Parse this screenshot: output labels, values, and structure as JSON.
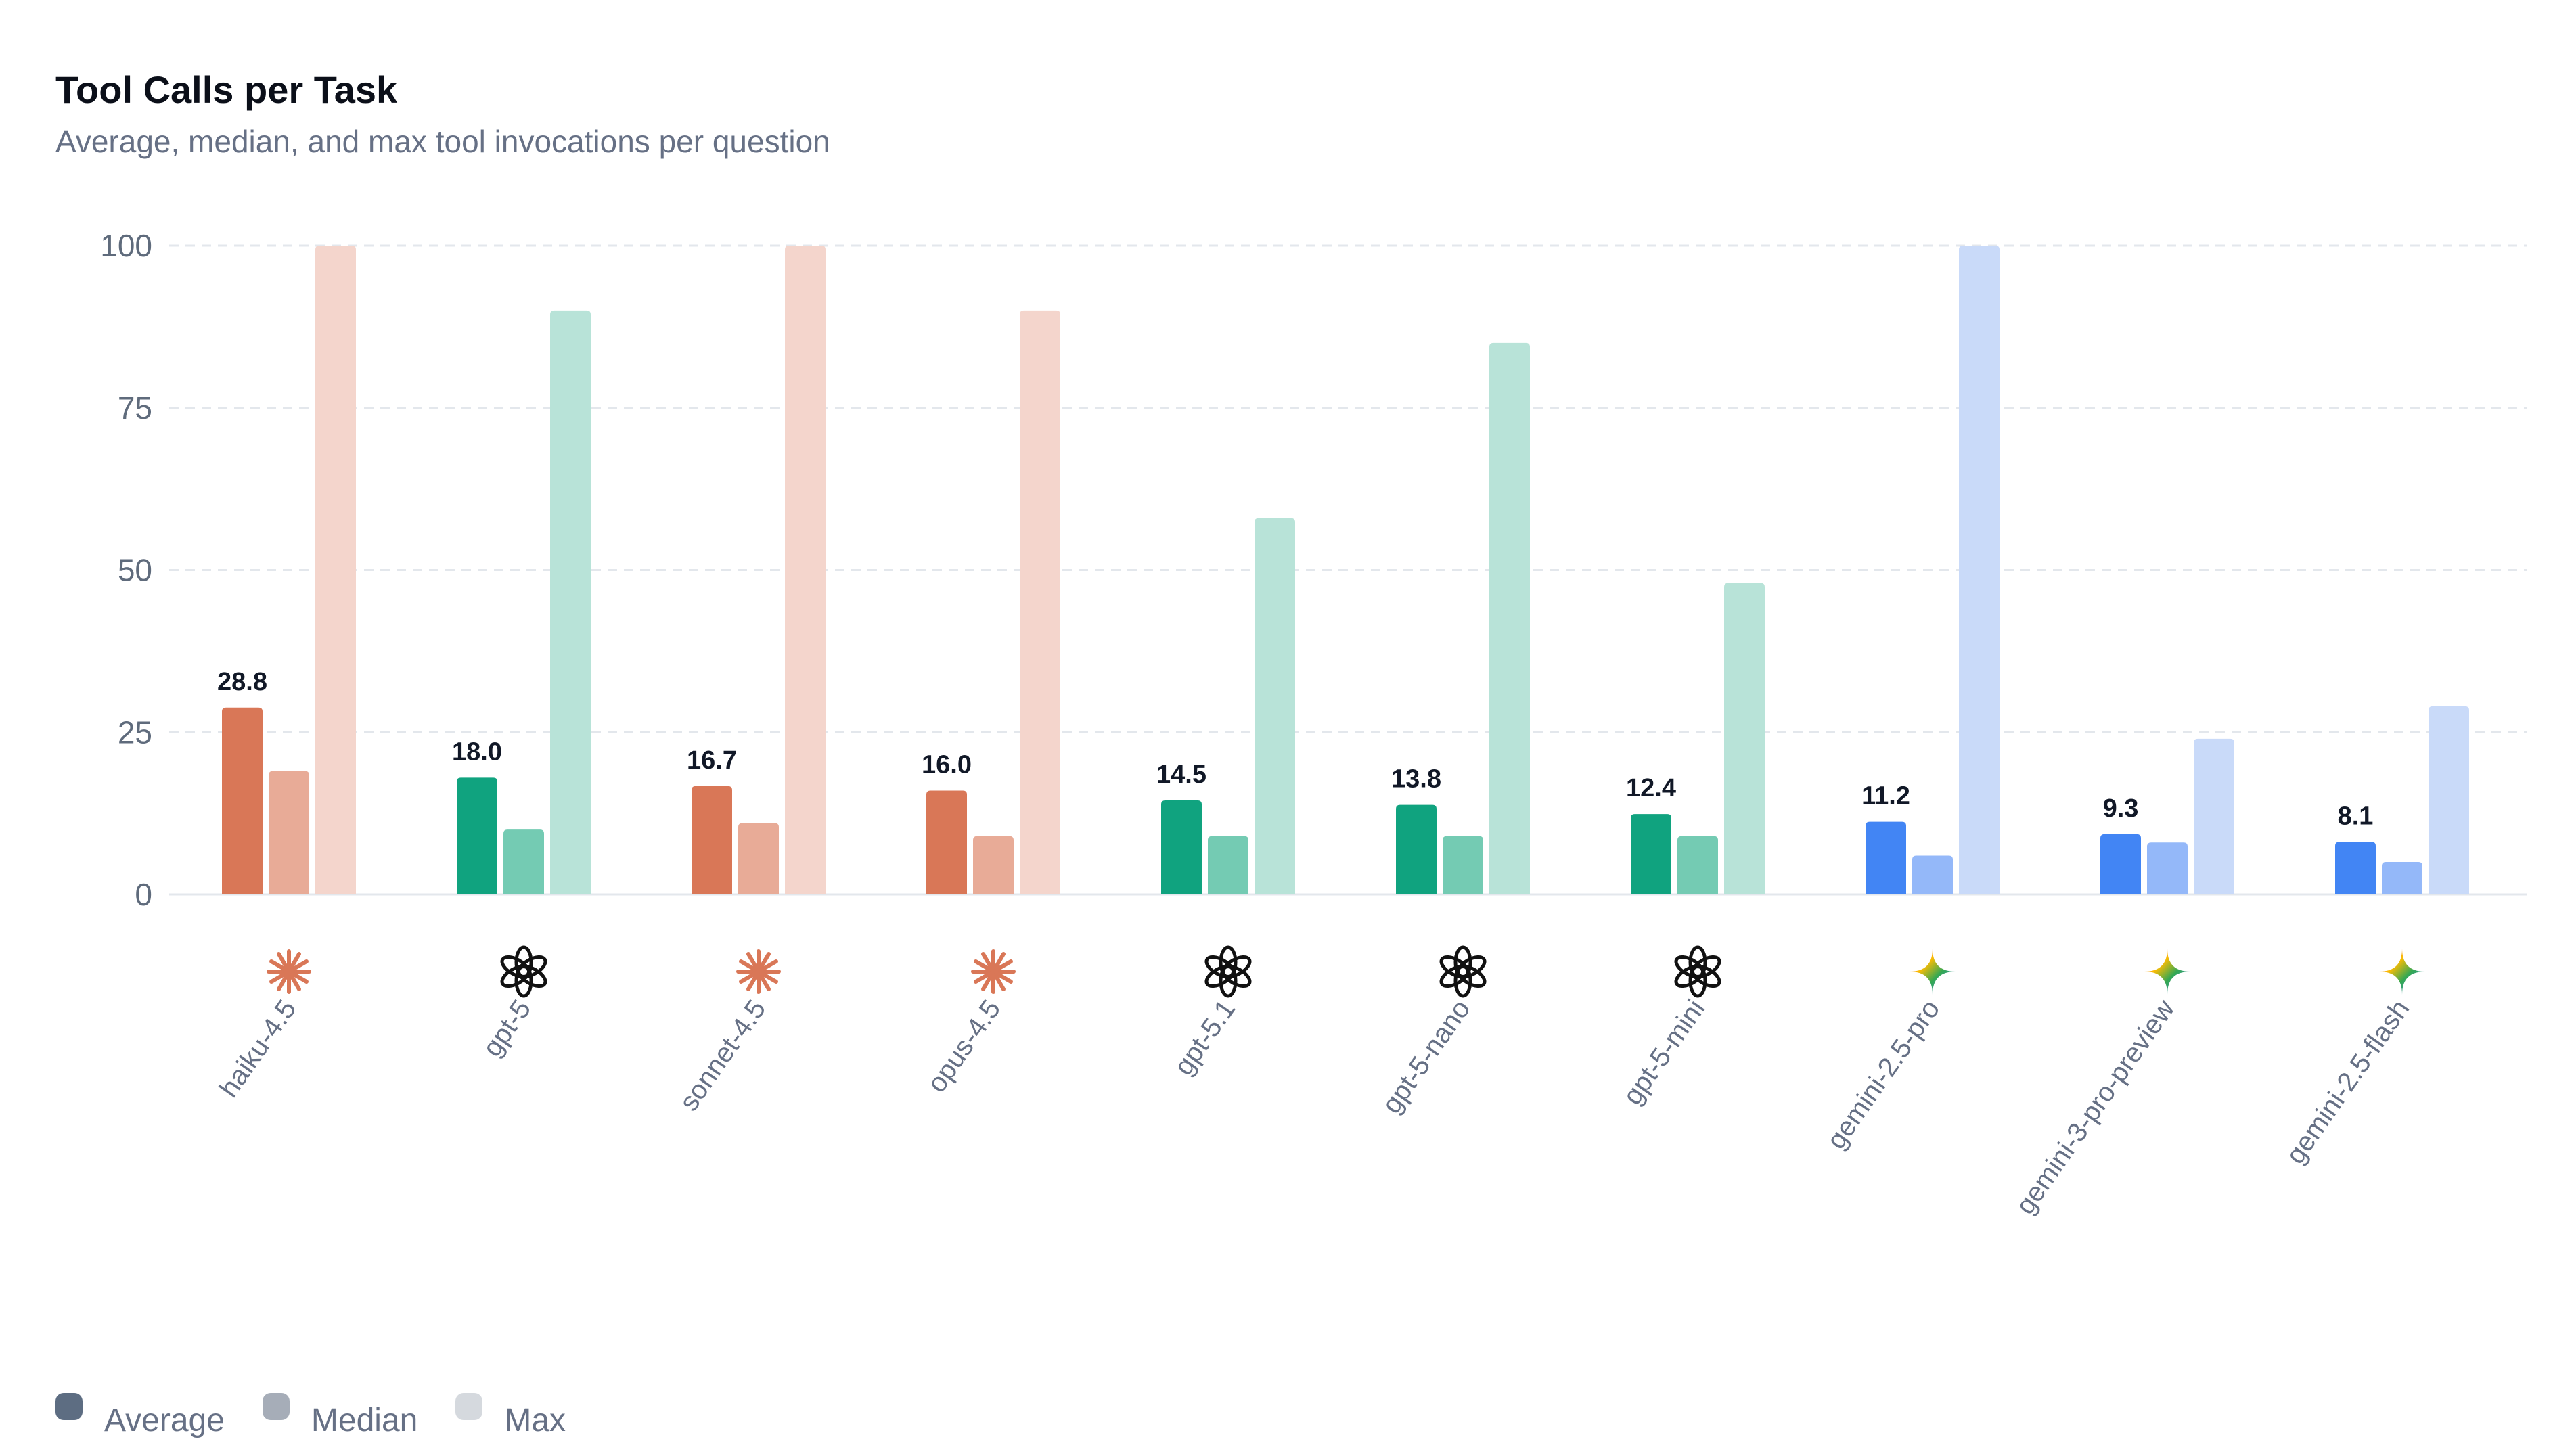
{
  "chart_data": {
    "type": "bar",
    "title": "Tool Calls per Task",
    "subtitle": "Average, median, and max tool invocations per question",
    "xlabel": "",
    "ylabel": "",
    "ylim": [
      0,
      100
    ],
    "yticks": [
      0,
      25,
      50,
      75,
      100
    ],
    "grid": true,
    "legend_position": "bottom-left",
    "categories": [
      "haiku-4.5",
      "gpt-5",
      "sonnet-4.5",
      "opus-4.5",
      "gpt-5.1",
      "gpt-5-nano",
      "gpt-5-mini",
      "gemini-2.5-pro",
      "gemini-3-pro-preview",
      "gemini-2.5-flash"
    ],
    "providers": [
      "anthropic",
      "openai",
      "anthropic",
      "anthropic",
      "openai",
      "openai",
      "openai",
      "google",
      "google",
      "google"
    ],
    "provider_icons": {
      "anthropic": "anthropic-asterisk-icon",
      "openai": "openai-knot-icon",
      "google": "gemini-sparkle-icon"
    },
    "provider_colors": {
      "anthropic": {
        "average": "#d97757",
        "median": "#e8ab97",
        "max": "#f4d5cc"
      },
      "openai": {
        "average": "#10a37f",
        "median": "#74cbb3",
        "max": "#b8e3d8"
      },
      "google": {
        "average": "#4285f4",
        "median": "#94b8f9",
        "max": "#c9daf9"
      }
    },
    "series": [
      {
        "name": "Average",
        "key": "average",
        "values": [
          28.8,
          18.0,
          16.7,
          16.0,
          14.5,
          13.8,
          12.4,
          11.2,
          9.3,
          8.1
        ],
        "labels": [
          "28.8",
          "18.0",
          "16.7",
          "16.0",
          "14.5",
          "13.8",
          "12.4",
          "11.2",
          "9.3",
          "8.1"
        ]
      },
      {
        "name": "Median",
        "key": "median",
        "values": [
          19,
          10,
          11,
          9,
          9,
          9,
          9,
          6,
          8,
          5
        ]
      },
      {
        "name": "Max",
        "key": "max",
        "values": [
          100,
          90,
          100,
          90,
          58,
          85,
          48,
          100,
          24,
          29
        ]
      }
    ]
  },
  "legend": [
    {
      "label": "Average",
      "color": "#5d6d82"
    },
    {
      "label": "Median",
      "color": "#a6adb8"
    },
    {
      "label": "Max",
      "color": "#d5d9de"
    }
  ]
}
